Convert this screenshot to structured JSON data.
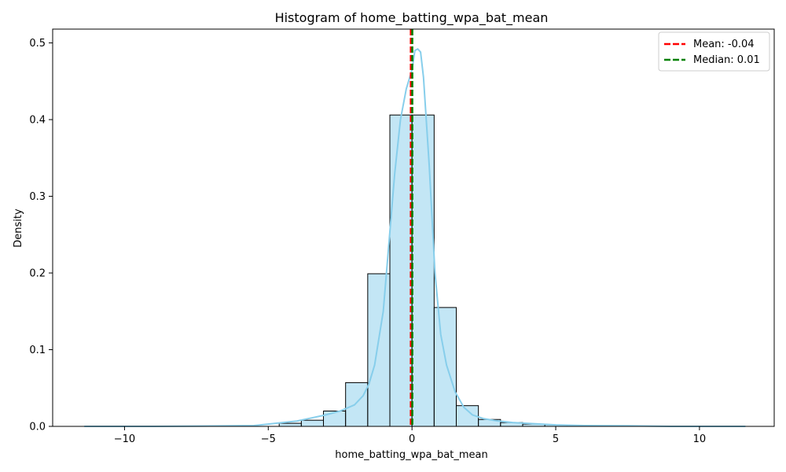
{
  "chart_data": {
    "type": "bar",
    "title": "Histogram of home_batting_wpa_bat_mean",
    "xlabel": "home_batting_wpa_bat_mean",
    "ylabel": "Density",
    "xlim": [
      -12.5,
      12.6
    ],
    "ylim": [
      0,
      0.518
    ],
    "xticks": [
      -10,
      -5,
      0,
      5,
      10
    ],
    "xtick_labels": [
      "−10",
      "−5",
      "0",
      "5",
      "10"
    ],
    "yticks": [
      0.0,
      0.1,
      0.2,
      0.3,
      0.4,
      0.5
    ],
    "ytick_labels": [
      "0.0",
      "0.1",
      "0.2",
      "0.3",
      "0.4",
      "0.5"
    ],
    "grid": false,
    "legend_position": "top-right",
    "histogram": {
      "bin_width": 0.77,
      "color": "#87ceeb",
      "edge_color": "#000000",
      "bins": [
        {
          "x0": -4.62,
          "x1": -3.85,
          "density": 0.004
        },
        {
          "x0": -3.85,
          "x1": -3.08,
          "density": 0.008
        },
        {
          "x0": -3.08,
          "x1": -2.31,
          "density": 0.02
        },
        {
          "x0": -2.31,
          "x1": -1.54,
          "density": 0.057
        },
        {
          "x0": -1.54,
          "x1": -0.77,
          "density": 0.199
        },
        {
          "x0": -0.77,
          "x1": 0.0,
          "density": 0.406
        },
        {
          "x0": 0.0,
          "x1": 0.77,
          "density": 0.406
        },
        {
          "x0": 0.77,
          "x1": 1.54,
          "density": 0.155
        },
        {
          "x0": 1.54,
          "x1": 2.31,
          "density": 0.027
        },
        {
          "x0": 2.31,
          "x1": 3.08,
          "density": 0.009
        },
        {
          "x0": 3.08,
          "x1": 3.85,
          "density": 0.005
        },
        {
          "x0": 3.85,
          "x1": 4.62,
          "density": 0.003
        },
        {
          "x0": 4.62,
          "x1": 5.39,
          "density": 0.002
        }
      ]
    },
    "kde": {
      "name": "KDE",
      "color": "#87ceeb",
      "x": [
        -11.4,
        -9,
        -7,
        -5.5,
        -5,
        -4.5,
        -4,
        -3.5,
        -3,
        -2.5,
        -2,
        -1.7,
        -1.5,
        -1.3,
        -1.0,
        -0.8,
        -0.6,
        -0.4,
        -0.2,
        0,
        0.1,
        0.2,
        0.3,
        0.4,
        0.6,
        0.8,
        1.0,
        1.2,
        1.5,
        1.8,
        2.1,
        2.5,
        3,
        3.5,
        4,
        4.5,
        5,
        6,
        7.5,
        9,
        11.6
      ],
      "y": [
        0.0,
        0.0,
        0.0005,
        0.001,
        0.003,
        0.005,
        0.007,
        0.011,
        0.015,
        0.02,
        0.028,
        0.04,
        0.055,
        0.08,
        0.15,
        0.24,
        0.33,
        0.4,
        0.44,
        0.465,
        0.49,
        0.492,
        0.488,
        0.455,
        0.34,
        0.2,
        0.12,
        0.08,
        0.045,
        0.025,
        0.015,
        0.01,
        0.007,
        0.005,
        0.004,
        0.003,
        0.002,
        0.001,
        0.0008,
        0.0,
        0.0
      ]
    },
    "vlines": [
      {
        "name": "Mean: -0.04",
        "x": -0.04,
        "color": "#ff0000",
        "style": "dashed"
      },
      {
        "name": "Median: 0.01",
        "x": 0.01,
        "color": "#008000",
        "style": "dashed"
      }
    ]
  }
}
